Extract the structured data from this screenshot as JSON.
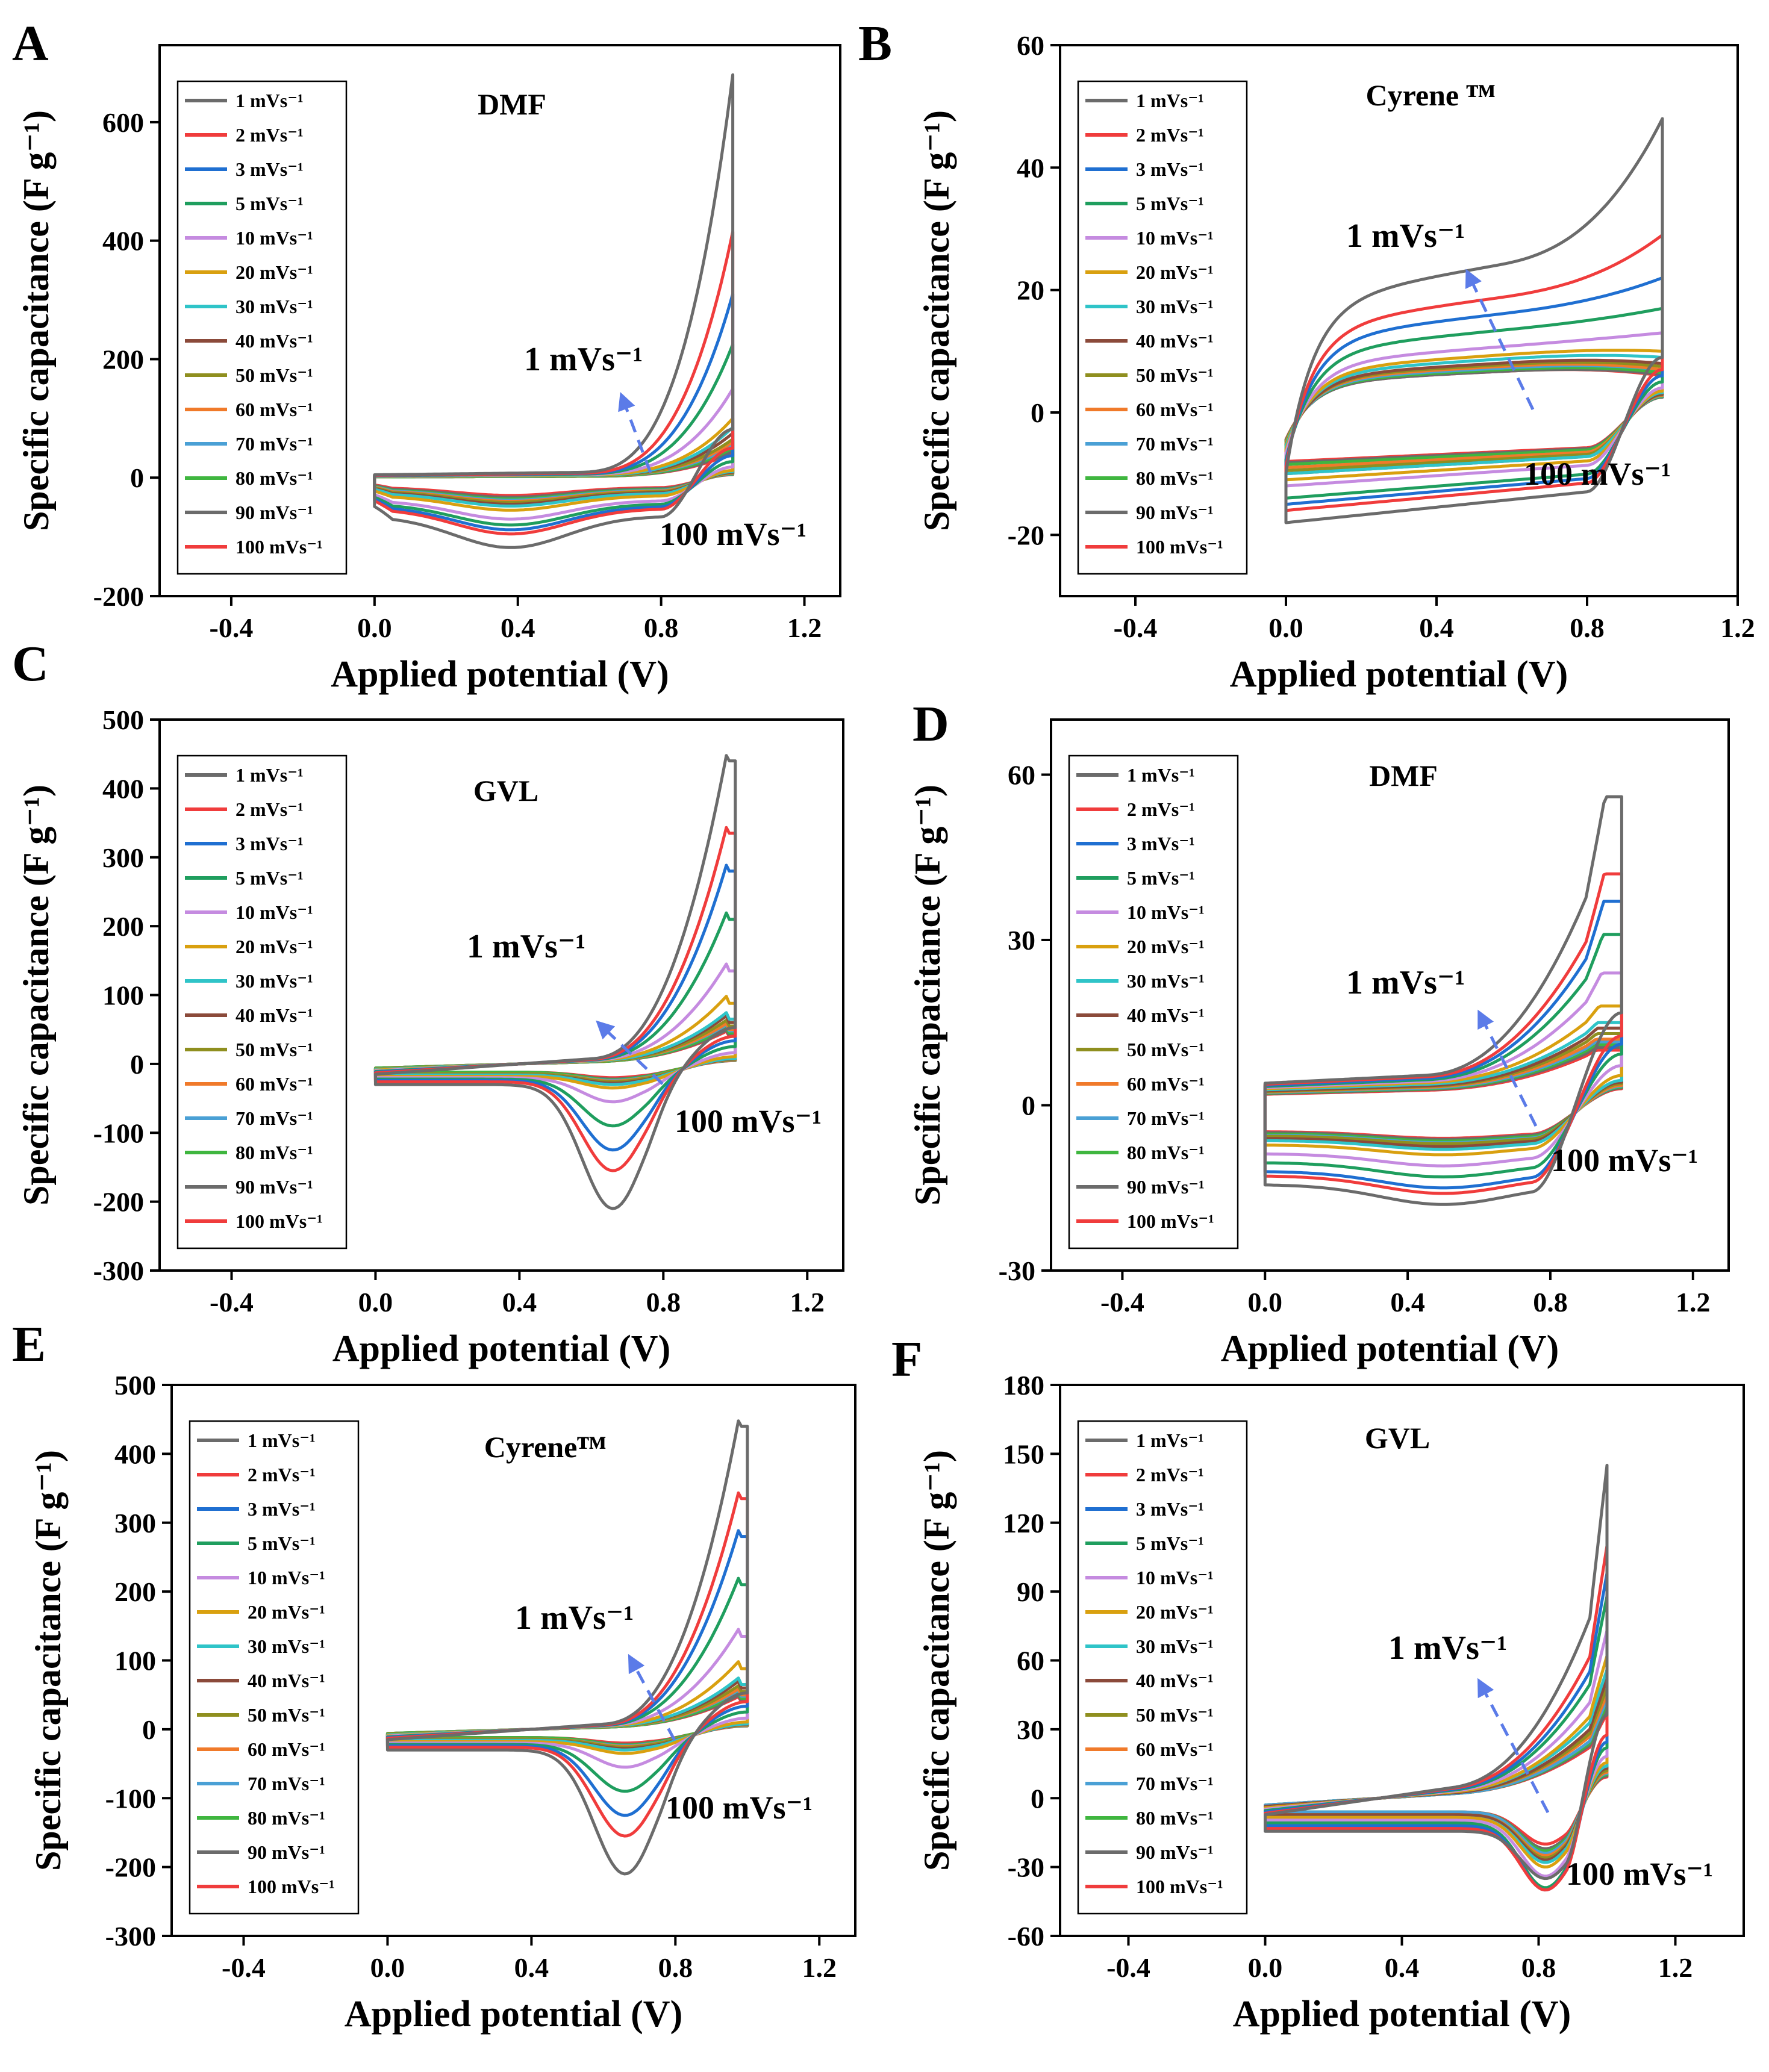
{
  "figure": {
    "legend_entries": [
      "1 mVs⁻¹",
      "2 mVs⁻¹",
      "3 mVs⁻¹",
      "5 mVs⁻¹",
      "10 mVs⁻¹",
      "20 mVs⁻¹",
      "30 mVs⁻¹",
      "40 mVs⁻¹",
      "50 mVs⁻¹",
      "60 mVs⁻¹",
      "70 mVs⁻¹",
      "80 mVs⁻¹",
      "90 mVs⁻¹",
      "100 mVs⁻¹"
    ],
    "series_colors": [
      "#6b6b6b",
      "#f03c3c",
      "#1f6fd1",
      "#1f9e5e",
      "#c58be0",
      "#d9a00f",
      "#2fc4c8",
      "#8b4a3a",
      "#8f8f1f",
      "#f07a2a",
      "#4aa0d5",
      "#3fb63f",
      "#6b6b6b",
      "#f03c3c"
    ],
    "arrow_color": "#5b7be8",
    "scan_rates": [
      1,
      2,
      3,
      5,
      10,
      20,
      30,
      40,
      50,
      60,
      70,
      80,
      90,
      100
    ]
  },
  "chart_data": [
    {
      "panel": "A",
      "type": "line",
      "title": "DMF",
      "xlabel": "Applied potential (V)",
      "ylabel": "Specific capacitance (F g⁻¹)",
      "xlim": [
        -0.6,
        1.3
      ],
      "ylim": [
        -200,
        730
      ],
      "xticks": [
        -0.4,
        0.0,
        0.4,
        0.8,
        1.2
      ],
      "yticks": [
        -200,
        0,
        200,
        400,
        600
      ],
      "xtick_labels": [
        "-0.4",
        "0.0",
        "0.4",
        "0.8",
        "1.2"
      ],
      "ytick_labels": [
        "-200",
        "0",
        "200",
        "400",
        "600"
      ],
      "annotation_slow": "1 mVs⁻¹",
      "annotation_fast": "100 mVs⁻¹",
      "legend_position": "upper-left",
      "curve_params": {
        "shape": "rise",
        "peak": [
          680,
          415,
          310,
          225,
          150,
          100,
          85,
          75,
          65,
          60,
          55,
          50,
          45,
          42
        ],
        "cath_min": [
          -118,
          -95,
          -88,
          -80,
          -70,
          -55,
          -48,
          -45,
          -42,
          -40,
          -38,
          -36,
          -33,
          -30
        ],
        "plateau": [
          12,
          10,
          9,
          8,
          7,
          6,
          5,
          5,
          4,
          4,
          4,
          3,
          3,
          3
        ]
      }
    },
    {
      "panel": "B",
      "type": "line",
      "title": "Cyrene ᵀᴹ",
      "xlabel": "Applied potential (V)",
      "ylabel": "Specific capacitance (F g⁻¹)",
      "xlim": [
        -0.6,
        1.2
      ],
      "ylim": [
        -30,
        60
      ],
      "xticks": [
        -0.4,
        0.0,
        0.4,
        0.8,
        1.2
      ],
      "yticks": [
        -20,
        0,
        20,
        40,
        60
      ],
      "xtick_labels": [
        "-0.4",
        "0.0",
        "0.4",
        "0.8",
        "1.2"
      ],
      "ytick_labels": [
        "-20",
        "0",
        "20",
        "40",
        "60"
      ],
      "annotation_slow": "1 mVs⁻¹",
      "annotation_fast": "100 mVs⁻¹",
      "legend_position": "upper-left",
      "curve_params": {
        "shape": "rect",
        "peak": [
          48,
          29,
          22,
          17,
          13,
          10,
          9,
          8,
          7.5,
          7,
          7,
          6.5,
          6.2,
          6
        ],
        "cath_min": [
          -18,
          -16,
          -15,
          -14,
          -12,
          -11,
          -10,
          -10,
          -9.5,
          -9,
          -9,
          -8.5,
          -8.2,
          -8
        ],
        "plateau": [
          18,
          14,
          12,
          10,
          8,
          7,
          6.5,
          6,
          5.8,
          5.6,
          5.4,
          5.2,
          5,
          5
        ]
      }
    },
    {
      "panel": "C",
      "type": "line",
      "title": "GVL",
      "xlabel": "Applied potential (V)",
      "ylabel": "Specific capacitance (F g⁻¹)",
      "xlim": [
        -0.6,
        1.3
      ],
      "ylim": [
        -300,
        500
      ],
      "xticks": [
        -0.4,
        0.0,
        0.4,
        0.8,
        1.2
      ],
      "yticks": [
        -300,
        -200,
        -100,
        0,
        100,
        200,
        300,
        400,
        500
      ],
      "xtick_labels": [
        "-0.4",
        "0.0",
        "0.4",
        "0.8",
        "1.2"
      ],
      "ytick_labels": [
        "-300",
        "-200",
        "-100",
        "0",
        "100",
        "200",
        "300",
        "400",
        "500"
      ],
      "annotation_slow": "1 mVs⁻¹",
      "annotation_fast": "100 mVs⁻¹",
      "legend_position": "upper-left",
      "curve_params": {
        "shape": "redox",
        "peak": [
          440,
          335,
          280,
          210,
          135,
          88,
          65,
          60,
          55,
          50,
          48,
          45,
          42,
          40
        ],
        "cath_min": [
          -210,
          -155,
          -125,
          -90,
          -55,
          -35,
          -30,
          -28,
          -26,
          -25,
          -24,
          -23,
          -22,
          -20
        ],
        "plateau": [
          15,
          13,
          12,
          11,
          10,
          9,
          8,
          8,
          7,
          7,
          7,
          6,
          6,
          6
        ]
      }
    },
    {
      "panel": "D",
      "type": "line",
      "title": "DMF",
      "xlabel": "Applied potential (V)",
      "ylabel": "Specific capacitance (F g⁻¹)",
      "xlim": [
        -0.6,
        1.3
      ],
      "ylim": [
        -30,
        70
      ],
      "xticks": [
        -0.4,
        0.0,
        0.4,
        0.8,
        1.2
      ],
      "yticks": [
        -30,
        0,
        30,
        60
      ],
      "xtick_labels": [
        "-0.4",
        "0.0",
        "0.4",
        "0.8",
        "1.2"
      ],
      "ytick_labels": [
        "-30",
        "0",
        "30",
        "60"
      ],
      "annotation_slow": "1 mVs⁻¹",
      "annotation_fast": "100 mVs⁻¹",
      "legend_position": "upper-left",
      "curve_params": {
        "shape": "hump",
        "peak": [
          56,
          42,
          37,
          31,
          24,
          18,
          15,
          14,
          13,
          12,
          11.5,
          11,
          10.5,
          10
        ],
        "cath_min": [
          -18,
          -16,
          -15,
          -13,
          -11,
          -9,
          -8,
          -7.5,
          -7,
          -7,
          -6.8,
          -6.5,
          -6.2,
          -6
        ],
        "plateau": [
          4,
          3.8,
          3.6,
          3.4,
          3.2,
          3,
          2.8,
          2.6,
          2.5,
          2.4,
          2.3,
          2.2,
          2.1,
          2
        ]
      }
    },
    {
      "panel": "E",
      "type": "line",
      "title": "Cyreneᵀᴹ",
      "xlabel": "Applied potential (V)",
      "ylabel": "Specific capacitance (F g⁻¹)",
      "xlim": [
        -0.6,
        1.3
      ],
      "ylim": [
        -300,
        500
      ],
      "xticks": [
        -0.4,
        0.0,
        0.4,
        0.8,
        1.2
      ],
      "yticks": [
        -300,
        -200,
        -100,
        0,
        100,
        200,
        300,
        400,
        500
      ],
      "xtick_labels": [
        "-0.4",
        "0.0",
        "0.4",
        "0.8",
        "1.2"
      ],
      "ytick_labels": [
        "-300",
        "-200",
        "-100",
        "0",
        "100",
        "200",
        "300",
        "400",
        "500"
      ],
      "annotation_slow": "1 mVs⁻¹",
      "annotation_fast": "100 mVs⁻¹",
      "legend_position": "upper-left",
      "curve_params": {
        "shape": "redox",
        "peak": [
          440,
          335,
          280,
          210,
          135,
          88,
          65,
          60,
          55,
          50,
          48,
          45,
          42,
          40
        ],
        "cath_min": [
          -210,
          -155,
          -125,
          -90,
          -55,
          -35,
          -30,
          -28,
          -26,
          -25,
          -24,
          -23,
          -22,
          -20
        ],
        "plateau": [
          15,
          13,
          12,
          11,
          10,
          9,
          8,
          8,
          7,
          7,
          7,
          6,
          6,
          6
        ]
      }
    },
    {
      "panel": "F",
      "type": "line",
      "title": "GVL",
      "xlabel": "Applied potential (V)",
      "ylabel": "Specific capacitance (F g⁻¹)",
      "xlim": [
        -0.6,
        1.4
      ],
      "ylim": [
        -60,
        180
      ],
      "xticks": [
        -0.4,
        0.0,
        0.4,
        0.8,
        1.2
      ],
      "yticks": [
        -60,
        -30,
        0,
        30,
        60,
        90,
        120,
        150,
        180
      ],
      "xtick_labels": [
        "-0.4",
        "0.0",
        "0.4",
        "0.8",
        "1.2"
      ],
      "ytick_labels": [
        "-60",
        "-30",
        "0",
        "30",
        "60",
        "90",
        "120",
        "150",
        "180"
      ],
      "annotation_slow": "1 mVs⁻¹",
      "annotation_fast": "100 mVs⁻¹",
      "legend_position": "upper-left",
      "curve_params": {
        "shape": "redoxF",
        "peak": [
          145,
          110,
          98,
          88,
          73,
          62,
          56,
          52,
          48,
          45,
          43,
          41,
          39,
          37
        ],
        "cath_min": [
          -35,
          -40,
          -40,
          -39,
          -34,
          -30,
          -28,
          -27,
          -26,
          -25,
          -24,
          -23,
          -22,
          -20
        ],
        "plateau": [
          12,
          11,
          10,
          9,
          8,
          7,
          7,
          6,
          6,
          6,
          5,
          5,
          5,
          5
        ]
      }
    }
  ]
}
